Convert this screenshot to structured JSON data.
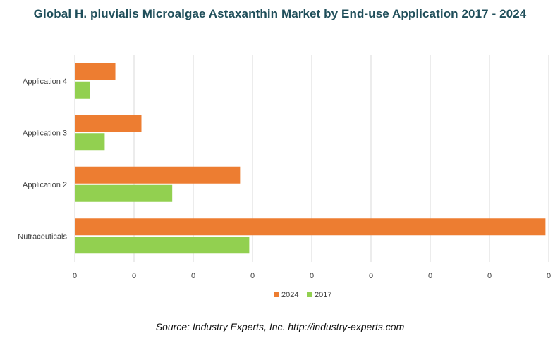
{
  "title": "Global H. pluvialis Microalgae Astaxanthin Market by End-use Application 2017 - 2024",
  "source": "Source: Industry Experts, Inc. http://industry-experts.com",
  "colors": {
    "s2024": "#ed7d31",
    "s2017": "#92d050",
    "grid": "#d9d9d9",
    "text": "#404040"
  },
  "chart_data": {
    "type": "bar",
    "orientation": "horizontal",
    "categories": [
      "Application 4",
      "Application 3",
      "Application 2",
      "Nutraceuticals"
    ],
    "series": [
      {
        "name": "2024",
        "values": [
          13.7,
          22.5,
          55.8,
          158.9
        ]
      },
      {
        "name": "2017",
        "values": [
          5.1,
          10.1,
          32.9,
          58.9
        ]
      }
    ],
    "xlim": [
      0,
      160
    ],
    "ticks": [
      0,
      20,
      40,
      60,
      80,
      100,
      120,
      140,
      160
    ],
    "tick_labels": [
      "0",
      "0",
      "0",
      "0",
      "0",
      "0",
      "0",
      "0",
      "0"
    ],
    "grid": true,
    "legend": "bottom"
  }
}
